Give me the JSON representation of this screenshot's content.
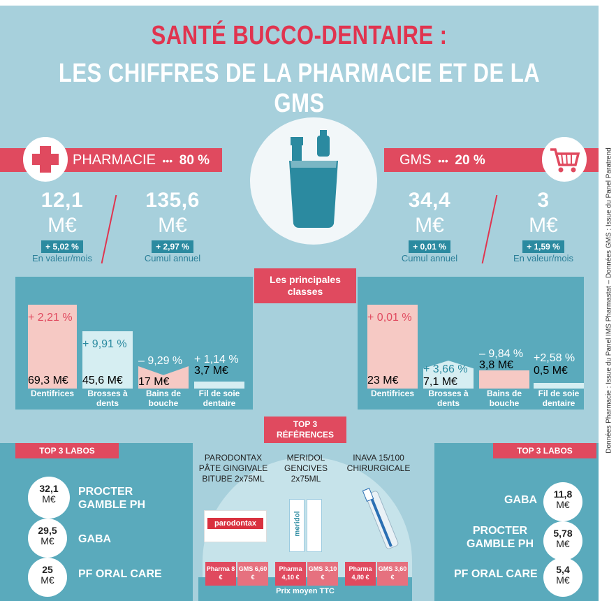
{
  "title": {
    "line1": "SANTÉ BUCCO-DENTAIRE :",
    "line2": "LES CHIFFRES DE LA PHARMACIE ET DE LA GMS"
  },
  "pharmacie": {
    "label": "PHARMACIE",
    "dots": "•••",
    "share": "80 %",
    "stats": [
      {
        "num": "12,1",
        "unit": "M€",
        "badge": "+ 5,02 %",
        "lbl": "En valeur/mois"
      },
      {
        "num": "135,6",
        "unit": "M€",
        "badge": "+ 2,97 %",
        "lbl": "Cumul annuel"
      }
    ],
    "bars": [
      {
        "pct": "+ 2,21 %",
        "val": "69,3 M€",
        "cat": "Dentifrices"
      },
      {
        "pct": "+ 9,91 %",
        "val": "45,6 M€",
        "cat": "Brosses à dents"
      },
      {
        "pct": "– 9,29 %",
        "val": "17 M€",
        "cat": "Bains de bouche"
      },
      {
        "pct": "+ 1,14 %",
        "val": "3,7 M€",
        "cat": "Fil de soie dentaire"
      }
    ],
    "labos_title": "TOP 3 LABOS",
    "labos": [
      {
        "num": "32,1",
        "unit": "M€",
        "name": "PROCTER GAMBLE PH"
      },
      {
        "num": "29,5",
        "unit": "M€",
        "name": "GABA"
      },
      {
        "num": "25",
        "unit": "M€",
        "name": "PF ORAL CARE"
      }
    ]
  },
  "gms": {
    "label": "GMS",
    "dots": "•••",
    "share": "20 %",
    "stats": [
      {
        "num": "34,4",
        "unit": "M€",
        "badge": "+ 0,01 %",
        "lbl": "Cumul annuel"
      },
      {
        "num": "3",
        "unit": "M€",
        "badge": "+ 1,59 %",
        "lbl": "En valeur/mois"
      }
    ],
    "bars": [
      {
        "pct": "+ 0,01 %",
        "val": "23 M€",
        "cat": "Dentifrices"
      },
      {
        "pct": "+ 3,66 %",
        "val": "7,1 M€",
        "cat": "Brosses à dents"
      },
      {
        "pct": "– 9,84 %",
        "val": "3,8 M€",
        "cat": "Bains de bouche"
      },
      {
        "pct": "+2,58 %",
        "val": "0,5 M€",
        "cat": "Fil de soie dentaire"
      }
    ],
    "labos_title": "TOP 3 LABOS",
    "labos": [
      {
        "num": "11,8",
        "unit": "M€",
        "name": "GABA"
      },
      {
        "num": "5,78",
        "unit": "M€",
        "name": "PROCTER GAMBLE PH"
      },
      {
        "num": "5,4",
        "unit": "M€",
        "name": "PF ORAL CARE"
      }
    ]
  },
  "classes_title": "Les principales classes",
  "top3_title": "TOP 3 RÉFÉRENCES",
  "refs": [
    {
      "name": "PARODONTAX PÂTE GINGIVALE BITUBE 2x75ML",
      "pack": "parodontax",
      "pharma": "Pharma 8 €",
      "gms": "GMS 6,60 €"
    },
    {
      "name": "MERIDOL GENCIVES 2x75ML",
      "pack": "meridol",
      "pharma": "Pharma 4,10 €",
      "gms": "GMS 3,10 €"
    },
    {
      "name": "INAVA 15/100 CHIRURGICALE",
      "pack": "",
      "pharma": "Pharma 4,80 €",
      "gms": "GMS 3,60 €"
    }
  ],
  "price_label": "Prix moyen TTC",
  "source": "Données Pharmacie : Issue du Panel IMS Pharmastat – Données GMS : Issue du Panel Paratrend",
  "colors": {
    "red": "#e04a5f",
    "teal": "#5aaabc",
    "bg": "#a7d0dc",
    "dark_teal": "#2b8aa0",
    "pink_bar": "#f6c9c4",
    "blue_bar": "#d6eef2"
  },
  "icons": [
    "plus-icon",
    "shopping-cart-icon",
    "toothbrush-cup-icon"
  ]
}
